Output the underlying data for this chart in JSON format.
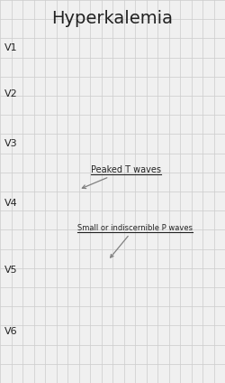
{
  "title": "Hyperkalemia",
  "title_fontsize": 14,
  "background_color": "#f0f0f0",
  "grid_color": "#cccccc",
  "ecg_color": "#cc2222",
  "ecg_linewidth": 1.5,
  "label_color": "#222222",
  "leads": [
    "V1",
    "V2",
    "V3",
    "V4",
    "V5",
    "V6"
  ],
  "annotation1_text": "Peaked T waves",
  "annotation2_text": "Small or indiscernible P waves"
}
